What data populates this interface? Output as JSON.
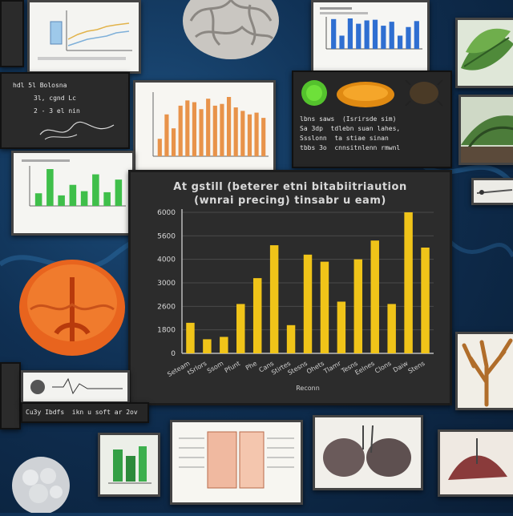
{
  "colors": {
    "background": "#0f2f52",
    "main_bar": "#f0c419",
    "thumb_bar_orange": "#e8934a",
    "thumb_bar_blue": "#2f6fd1",
    "thumb_bar_green": "#3fbf4a"
  },
  "main_panel": {
    "title_line1": "At gstill (beterer etni bitabiitriaution",
    "title_line2": "(wnrai precing) tinsabr u eam)",
    "xlabel": "Reconn"
  },
  "chart_data": [
    {
      "type": "bar",
      "title": "At gstill (beterer etni bitabiitriaution (wnrai precing) tinsabr u eam)",
      "xlabel": "Reconn",
      "ylabel": "",
      "ytick_labels": [
        "0",
        "1800",
        "2600",
        "3000",
        "4000",
        "5600",
        "6000"
      ],
      "ylim": [
        0,
        6
      ],
      "categories": [
        "Seteam",
        "tSrlors",
        "Ssom",
        "Pfunt",
        "Phe",
        "Cans",
        "Stirtes",
        "Stesns",
        "Ohets",
        "Tlamr",
        "Tesns",
        "Eelnes",
        "Clons",
        "Daiw",
        "Stens"
      ],
      "values": [
        1.3,
        0.6,
        0.7,
        2.1,
        3.2,
        4.6,
        1.2,
        4.2,
        3.9,
        2.2,
        4.0,
        4.8,
        2.1,
        6.0,
        4.5
      ]
    },
    {
      "type": "bar",
      "values": [
        1.0,
        2.4,
        1.6,
        2.9,
        3.2,
        3.1,
        2.7,
        3.3,
        2.9,
        3.0,
        3.4,
        2.8,
        2.6,
        2.4,
        2.5,
        2.2
      ]
    },
    {
      "type": "bar",
      "values": [
        4.5,
        2.0,
        4.6,
        3.8,
        4.3,
        4.4,
        3.5,
        4.1,
        2.0,
        3.3,
        4.2
      ]
    },
    {
      "type": "bar",
      "values": [
        1.2,
        3.5,
        1.0,
        2.0,
        1.4,
        3.0,
        1.3,
        2.5
      ]
    }
  ],
  "notes": {
    "top_left": [
      "hdl 5l Bolosna",
      "3l, cgnd Lc",
      "2 - 3 el nin"
    ],
    "top_center": [
      "lbns saws  (Isrirsde sim)",
      "Sa 3dp  tdlebn suan lahes,",
      "Ssslonn  ta stiae sinan",
      "tbbs 3o  cnnsitnlenn rmwnl"
    ],
    "bottom_left": [
      "Cu3y Ibdfs  ikn u soft ar 2ov"
    ]
  },
  "icons": [
    "brain-icon",
    "fruit-icon",
    "ladybug-icon",
    "leaf-icon",
    "orange-brain-icon",
    "coral-icon",
    "anatomy-icon",
    "stone-icon"
  ]
}
